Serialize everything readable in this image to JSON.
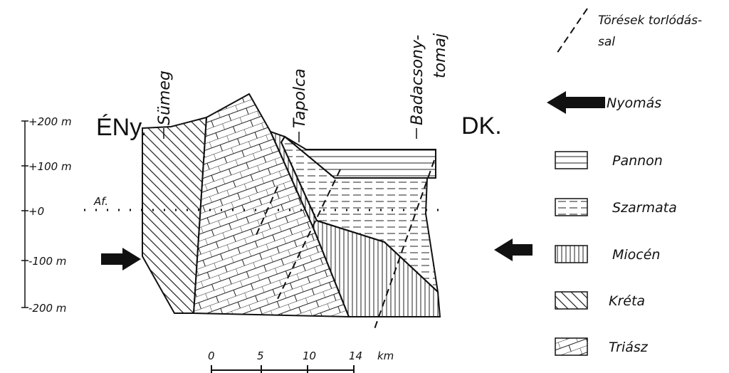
{
  "axis": {
    "ticks": [
      "+200 m",
      "+100 m",
      "+0",
      "-100 m",
      "-200 m"
    ]
  },
  "section": {
    "west": "ÉNy.",
    "east": "DK.",
    "places": [
      "Sümeg",
      "Tapolca",
      "Badacsony-",
      "tomaj"
    ],
    "marker": "Af."
  },
  "scale": {
    "ticks": [
      "0",
      "5",
      "10",
      "14"
    ],
    "unit": "km"
  },
  "legend": {
    "faults": [
      "Törések torlódás-",
      "sal"
    ],
    "pressure": "Nyomás",
    "units": [
      "Pannon",
      "Szarmata",
      "Miocén",
      "Kréta",
      "Triász"
    ]
  }
}
